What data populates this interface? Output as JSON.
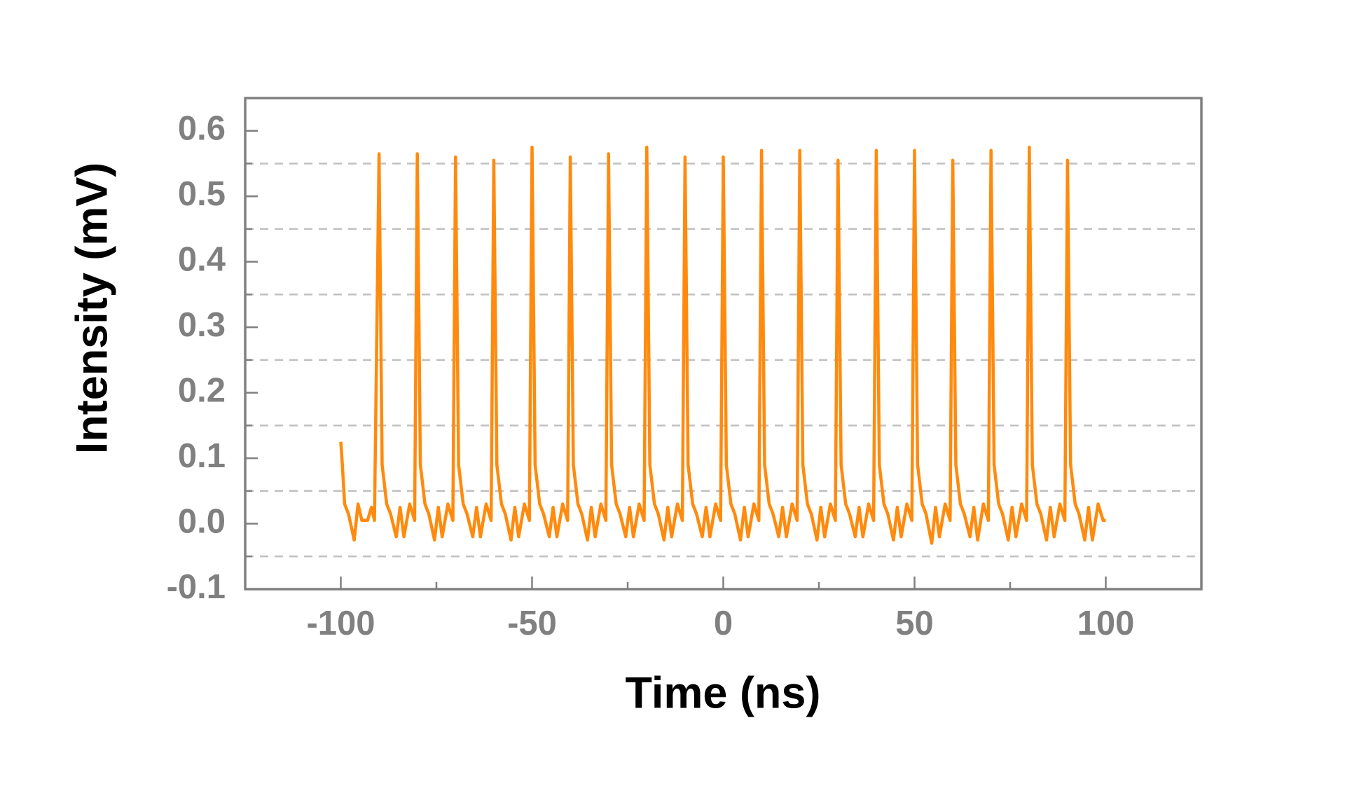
{
  "chart_data": {
    "type": "line",
    "xlabel": "Time (ns)",
    "ylabel": "Intensity (mV)",
    "xlim": [
      -125,
      125
    ],
    "ylim": [
      -0.1,
      0.65
    ],
    "xticks": [
      -100,
      -50,
      0,
      50,
      100
    ],
    "xminor": [
      -75,
      -25,
      25,
      75
    ],
    "yticks": [
      -0.1,
      {
        "value": 0,
        "label": "0.0"
      },
      0.1,
      0.2,
      0.3,
      0.4,
      0.5,
      0.6
    ],
    "ygrid": [
      -0.05,
      0.05,
      0.15,
      0.25,
      0.35,
      0.45,
      0.55
    ],
    "grid": true,
    "x": [
      -100,
      -99.6,
      -99,
      -98,
      -96.5,
      -95.5,
      -94.5,
      -93,
      -92,
      -91.2,
      -90,
      -89.2,
      -88,
      -87,
      -85.5,
      -84.5,
      -83.5,
      -82,
      -80.7,
      -80,
      -79.2,
      -78,
      -77,
      -75.5,
      -74.5,
      -73.5,
      -72,
      -70.7,
      -70,
      -69.2,
      -68,
      -67,
      -65.5,
      -64.5,
      -63.5,
      -62,
      -60.7,
      -60,
      -59.2,
      -58,
      -57,
      -55.5,
      -54.5,
      -53.5,
      -52,
      -50.7,
      -50,
      -49.2,
      -48,
      -47,
      -45.5,
      -44.5,
      -43.5,
      -42,
      -40.7,
      -40,
      -39.2,
      -38,
      -37,
      -35.5,
      -34.5,
      -33.5,
      -32,
      -30.7,
      -30,
      -29.2,
      -28,
      -27,
      -25.5,
      -24.5,
      -23.5,
      -22,
      -20.7,
      -20,
      -19.2,
      -18,
      -17,
      -15.5,
      -14.5,
      -13.5,
      -12,
      -10.7,
      -10,
      -9.2,
      -8,
      -7,
      -5.5,
      -4.5,
      -3.5,
      -2,
      -0.7,
      0,
      0.8,
      2,
      3,
      4.5,
      5.5,
      6.5,
      8,
      9.3,
      10,
      10.8,
      12,
      13,
      14.5,
      15.5,
      16.5,
      18,
      19.3,
      20,
      20.8,
      22,
      23,
      24.5,
      25.5,
      26.5,
      28,
      29.3,
      30,
      30.8,
      32,
      33,
      34.5,
      35.5,
      36.5,
      38,
      39.3,
      40,
      40.8,
      42,
      43,
      44.5,
      45.5,
      46.5,
      48,
      49.3,
      50,
      50.8,
      52,
      53,
      54.5,
      55.5,
      56.5,
      58,
      59.3,
      60,
      60.8,
      62,
      63,
      64.5,
      65.5,
      66.5,
      68,
      69.3,
      70,
      70.8,
      72,
      73,
      74.5,
      75.5,
      76.5,
      78,
      79.3,
      80,
      80.8,
      82,
      83,
      84.5,
      85.5,
      86.5,
      88,
      89.3,
      90,
      90.8,
      92,
      93,
      94.5,
      95.5,
      96.5,
      98,
      99.3,
      100
    ],
    "series": [
      {
        "color": "#ff8a0d",
        "values": [
          0.125,
          0.09,
          0.03,
          0.015,
          -0.025,
          0.03,
          0.005,
          0.005,
          0.025,
          0.005,
          0.565,
          0.09,
          0.03,
          0.015,
          -0.02,
          0.025,
          -0.02,
          0.03,
          0.005,
          0.565,
          0.09,
          0.03,
          0.015,
          -0.025,
          0.025,
          -0.02,
          0.03,
          0.005,
          0.56,
          0.09,
          0.03,
          0.015,
          -0.02,
          0.025,
          -0.02,
          0.03,
          0.005,
          0.555,
          0.09,
          0.03,
          0.015,
          -0.025,
          0.025,
          -0.02,
          0.03,
          0.005,
          0.575,
          0.09,
          0.03,
          0.015,
          -0.02,
          0.025,
          -0.02,
          0.03,
          0.005,
          0.56,
          0.09,
          0.03,
          0.015,
          -0.025,
          0.025,
          -0.02,
          0.03,
          0.005,
          0.565,
          0.09,
          0.03,
          0.015,
          -0.02,
          0.025,
          -0.02,
          0.03,
          0.005,
          0.575,
          0.09,
          0.03,
          0.015,
          -0.025,
          0.025,
          -0.02,
          0.03,
          0.005,
          0.56,
          0.09,
          0.03,
          0.015,
          -0.02,
          0.025,
          -0.02,
          0.03,
          0.005,
          0.56,
          0.09,
          0.03,
          0.015,
          -0.025,
          0.025,
          -0.02,
          0.03,
          0.005,
          0.57,
          0.09,
          0.03,
          0.015,
          -0.02,
          0.025,
          -0.02,
          0.03,
          0.005,
          0.57,
          0.09,
          0.03,
          0.015,
          -0.025,
          0.025,
          -0.02,
          0.03,
          0.005,
          0.555,
          0.09,
          0.03,
          0.015,
          -0.02,
          0.025,
          -0.02,
          0.03,
          0.005,
          0.57,
          0.09,
          0.03,
          0.015,
          -0.025,
          0.025,
          -0.02,
          0.03,
          0.005,
          0.57,
          0.09,
          0.03,
          0.015,
          -0.03,
          0.025,
          -0.02,
          0.03,
          0.005,
          0.555,
          0.09,
          0.03,
          0.015,
          -0.02,
          0.025,
          -0.025,
          0.03,
          0.005,
          0.57,
          0.09,
          0.03,
          0.015,
          -0.025,
          0.025,
          -0.02,
          0.03,
          0.005,
          0.575,
          0.09,
          0.03,
          0.015,
          -0.025,
          0.025,
          -0.02,
          0.03,
          0.005,
          0.555,
          0.09,
          0.03,
          0.015,
          -0.025,
          0.025,
          -0.025,
          0.03,
          0.005,
          0.005
        ]
      }
    ]
  }
}
